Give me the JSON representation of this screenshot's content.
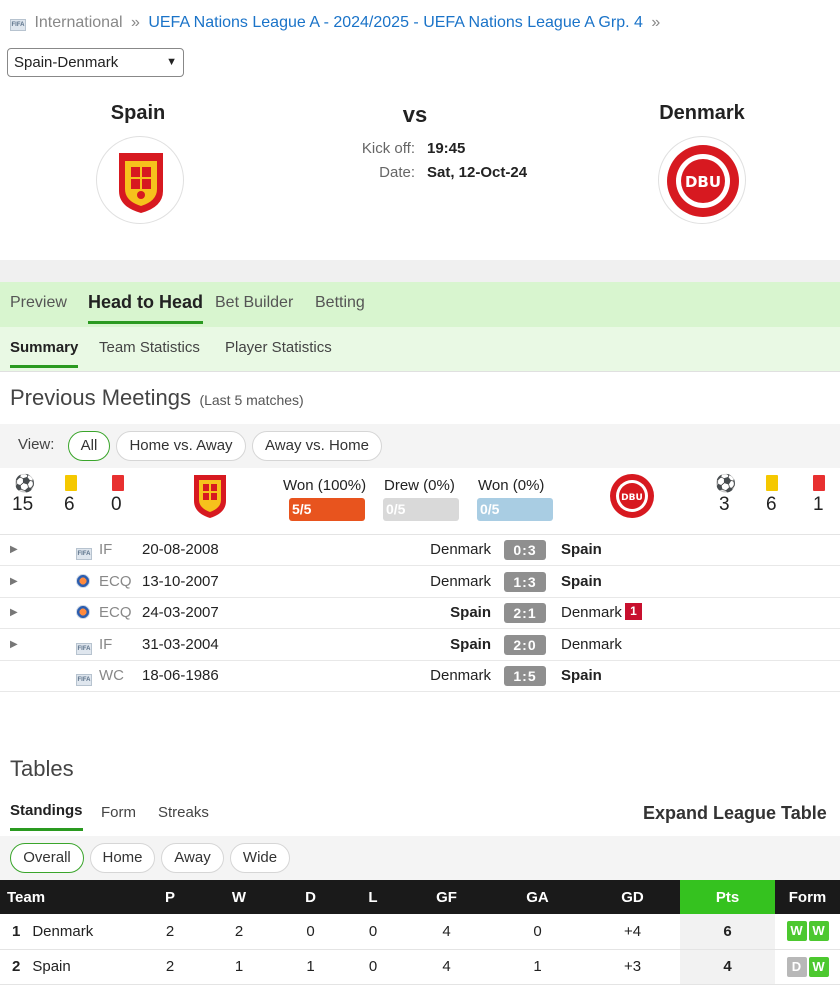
{
  "breadcrumb": {
    "root": "International",
    "competition": "UEFA Nations League A - 2024/2025 - UEFA Nations League A Grp. 4",
    "sep": "»",
    "icon": "fifa-icon"
  },
  "match_select": {
    "value": "Spain-Denmark"
  },
  "header": {
    "home": "Spain",
    "away": "Denmark",
    "vs": "vs",
    "kickoff_label": "Kick off:",
    "kickoff_value": "19:45",
    "date_label": "Date:",
    "date_value": "Sat, 12-Oct-24",
    "away_crest_text": "DBU"
  },
  "tabs": [
    "Preview",
    "Head to Head",
    "Bet Builder",
    "Betting"
  ],
  "subtabs": [
    "Summary",
    "Team Statistics",
    "Player Statistics"
  ],
  "previous": {
    "title": "Previous Meetings",
    "subtitle": "(Last 5 matches)",
    "view_label": "View:",
    "filters": [
      "All",
      "Home vs. Away",
      "Away vs. Home"
    ]
  },
  "summary": {
    "home_goals": "15",
    "home_yellow": "6",
    "home_red": "0",
    "away_goals": "3",
    "away_yellow": "6",
    "away_red": "1",
    "home_won_label": "Won (100%)",
    "home_won_bar": "5/5",
    "drew_label": "Drew (0%)",
    "drew_bar": "0/5",
    "away_won_label": "Won (0%)",
    "away_won_bar": "0/5",
    "home_win_fraction": 1.0,
    "colors": {
      "home": "#e8541e",
      "draw": "#d9d9d9",
      "away": "#a9cde3"
    }
  },
  "meetings": [
    {
      "comp_icon": "fifa-icon",
      "comp": "IF",
      "date": "20-08-2008",
      "home": "Denmark",
      "score": "0:3",
      "away": "Spain",
      "winner": "away",
      "red": "",
      "expandable": true
    },
    {
      "comp_icon": "uefa-icon",
      "comp": "ECQ",
      "date": "13-10-2007",
      "home": "Denmark",
      "score": "1:3",
      "away": "Spain",
      "winner": "away",
      "red": "",
      "expandable": true
    },
    {
      "comp_icon": "uefa-icon",
      "comp": "ECQ",
      "date": "24-03-2007",
      "home": "Spain",
      "score": "2:1",
      "away": "Denmark",
      "winner": "home",
      "red": "1",
      "expandable": true
    },
    {
      "comp_icon": "fifa-icon",
      "comp": "IF",
      "date": "31-03-2004",
      "home": "Spain",
      "score": "2:0",
      "away": "Denmark",
      "winner": "home",
      "red": "",
      "expandable": true
    },
    {
      "comp_icon": "fifa-icon",
      "comp": "WC",
      "date": "18-06-1986",
      "home": "Denmark",
      "score": "1:5",
      "away": "Spain",
      "winner": "away",
      "red": "",
      "expandable": false
    }
  ],
  "tables": {
    "title": "Tables",
    "tabs": [
      "Standings",
      "Form",
      "Streaks"
    ],
    "expand_label": "Expand League Table",
    "filters": [
      "Overall",
      "Home",
      "Away",
      "Wide"
    ],
    "columns": [
      "Team",
      "P",
      "W",
      "D",
      "L",
      "GF",
      "GA",
      "GD",
      "Pts",
      "Form"
    ],
    "rows": [
      {
        "pos": "1",
        "team": "Denmark",
        "p": "2",
        "w": "2",
        "d": "0",
        "l": "0",
        "gf": "4",
        "ga": "0",
        "gd": "+4",
        "pts": "6",
        "form": [
          "W",
          "W"
        ]
      },
      {
        "pos": "2",
        "team": "Spain",
        "p": "2",
        "w": "1",
        "d": "1",
        "l": "0",
        "gf": "4",
        "ga": "1",
        "gd": "+3",
        "pts": "4",
        "form": [
          "D",
          "W"
        ]
      }
    ]
  }
}
